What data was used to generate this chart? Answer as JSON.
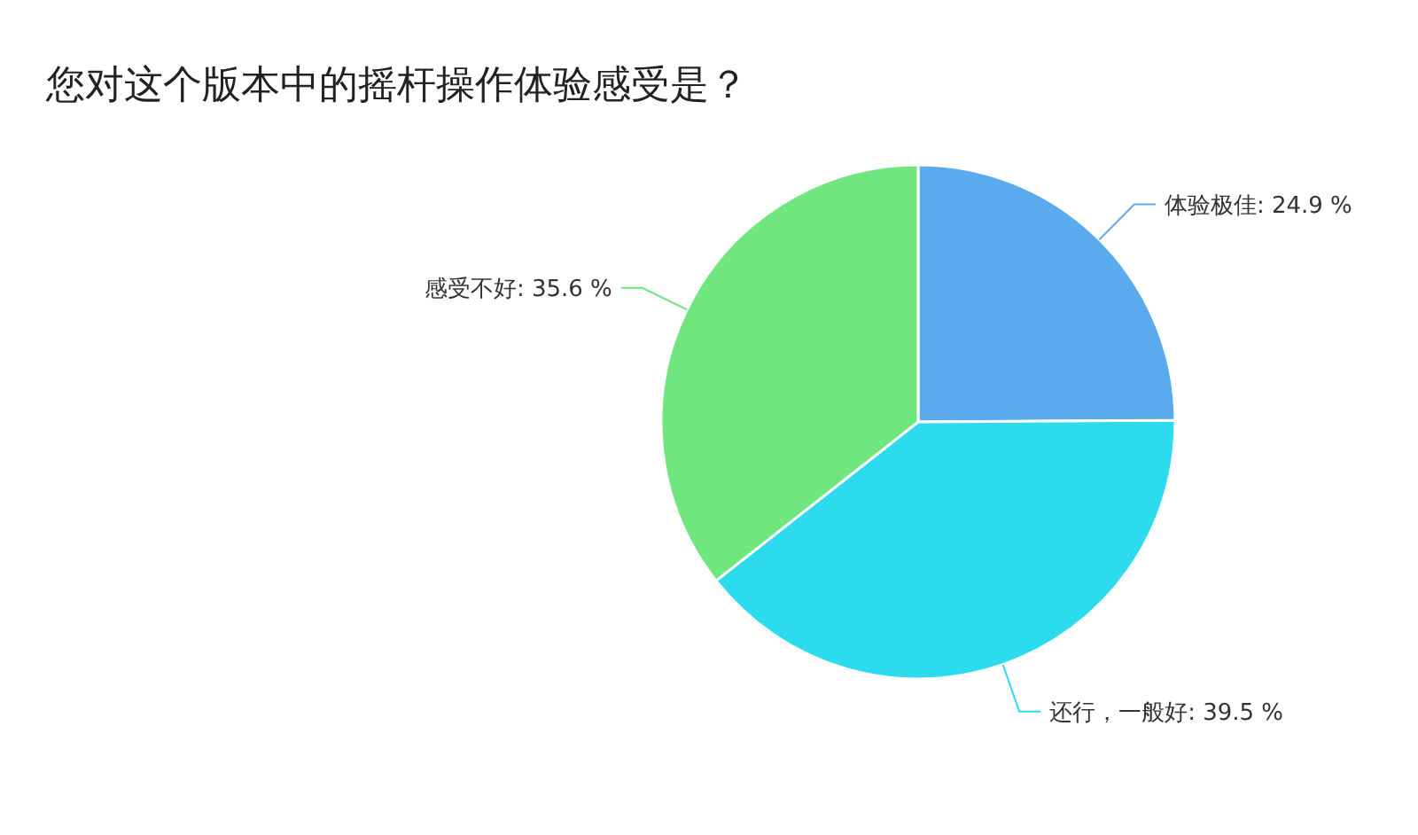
{
  "chart_data": {
    "type": "pie",
    "title": "您对这个版本中的摇杆操作体验感受是？",
    "categories": [
      "体验极佳",
      "还行，一般好",
      "感受不好"
    ],
    "values": [
      24.9,
      39.5,
      35.6
    ],
    "value_labels": [
      "24.9 %",
      "39.5 %",
      "35.6 %"
    ],
    "colors": [
      "#5caaee",
      "#2cdcee",
      "#70e67e"
    ]
  }
}
